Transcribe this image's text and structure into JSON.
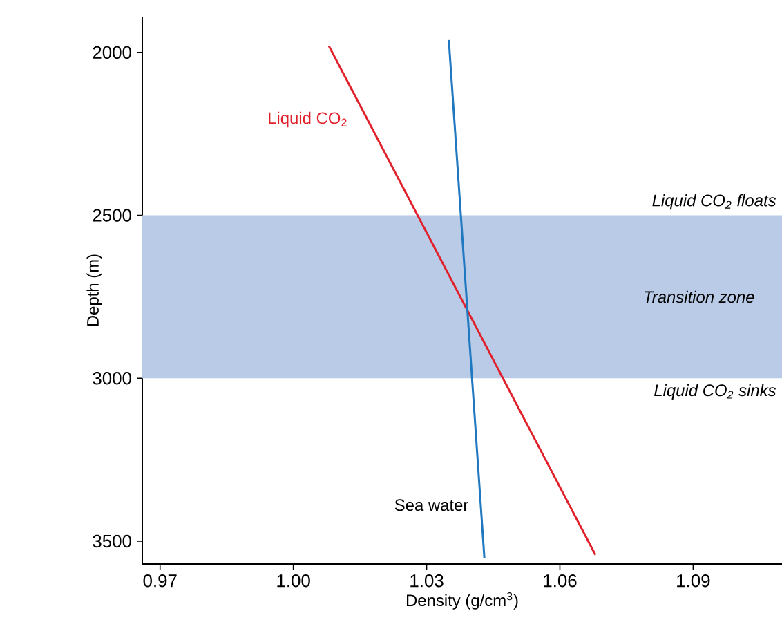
{
  "chart_data": {
    "type": "line",
    "xlabel": "Density (g/cm$^{3}$)",
    "ylabel": "Depth (m)",
    "xlim": [
      0.966,
      1.11
    ],
    "ylim": [
      3570,
      1890
    ],
    "xticks": [
      0.97,
      {
        "value": 1.0,
        "label": "1.00"
      },
      1.03,
      1.06,
      1.09
    ],
    "yticks": [
      2000,
      2500,
      3000,
      3500
    ],
    "series": [
      {
        "name": "Liquid CO$_{2}$",
        "color": "#e0202a",
        "x": [
          1.008,
          1.068
        ],
        "values": [
          1980,
          3542
        ]
      },
      {
        "name": "Sea water",
        "color": "#1f78c0",
        "x": [
          1.035,
          1.043
        ],
        "values": [
          1962,
          3551
        ]
      }
    ],
    "bands": [
      {
        "axis": "y",
        "from": 2500,
        "to": 3000,
        "label": "Transition zone",
        "color": "#b9cbe7"
      }
    ],
    "annotations": [
      "Liquid CO$_{2}$ floats",
      "Liquid CO$_{2}$ sinks"
    ],
    "grid": false,
    "marker": "none",
    "line_style": "solid"
  }
}
